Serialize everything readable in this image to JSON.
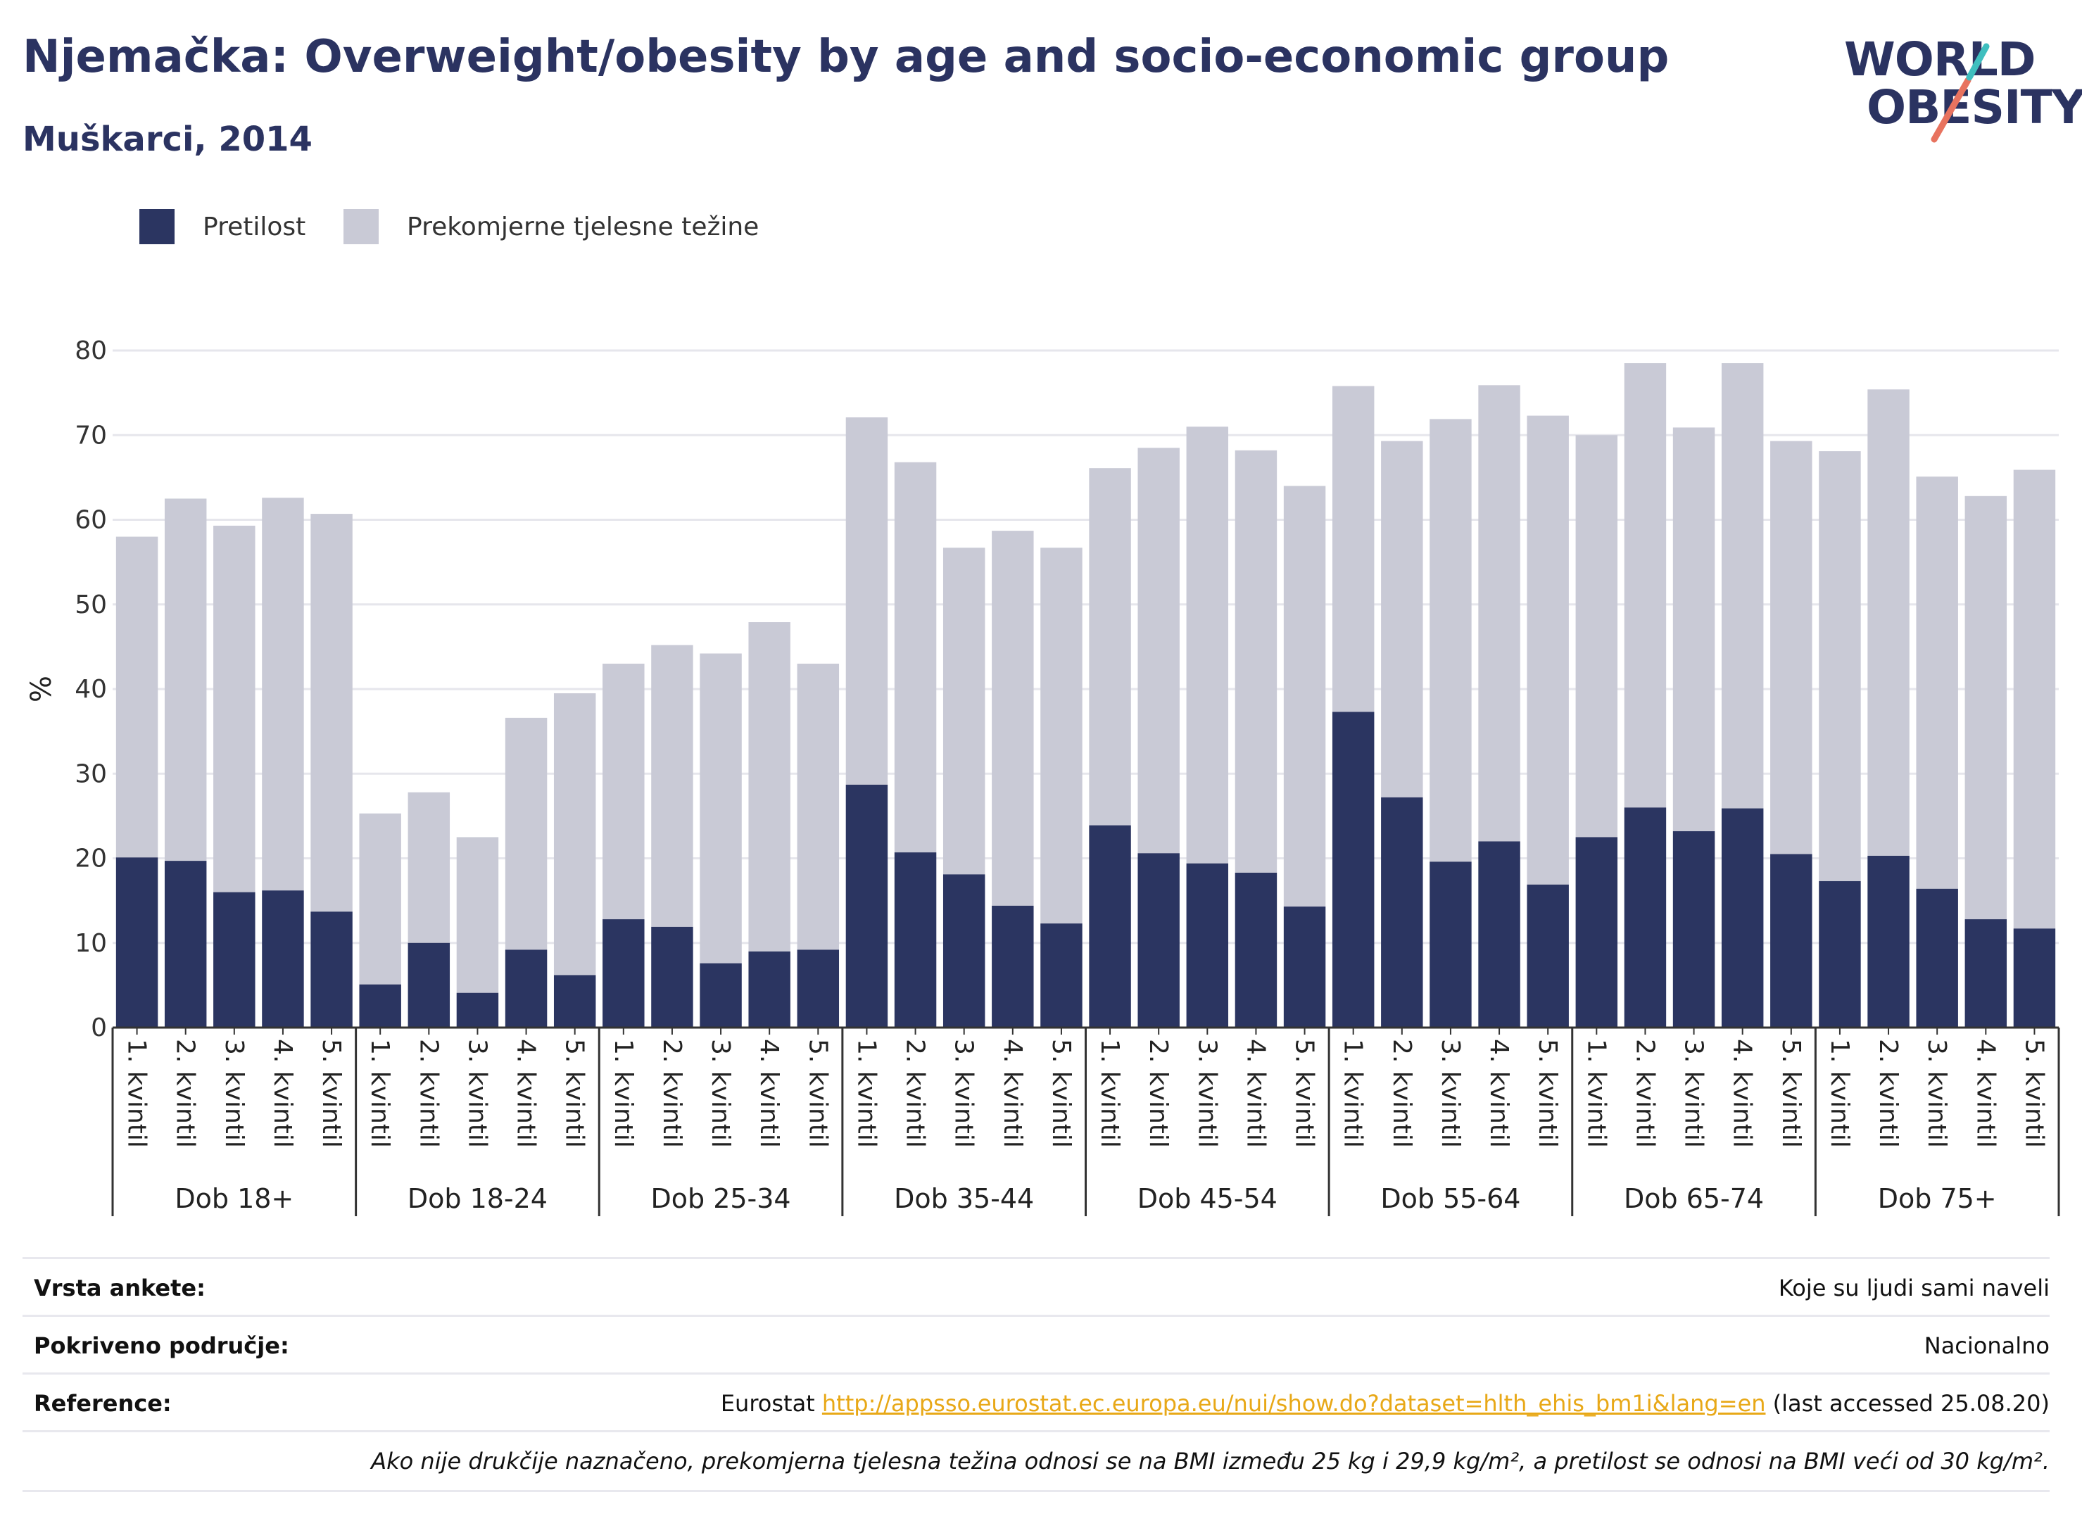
{
  "header": {
    "title": "Njemačka: Overweight/obesity by age and socio-economic group",
    "subtitle": "Muškarci, 2014"
  },
  "logo": {
    "line1": "WORLD",
    "line2": "OBESITY"
  },
  "colors": {
    "obesity": "#2b3561",
    "overweight": "#c9cad6",
    "grid": "#e6e6ec",
    "axis": "#333333",
    "logo_teal": "#3fbfbf",
    "logo_coral": "#e8735f"
  },
  "chart_data": {
    "type": "bar",
    "stacked": true,
    "ylabel": "%",
    "ylim": [
      0,
      80
    ],
    "yticks": [
      0,
      10,
      20,
      30,
      40,
      50,
      60,
      70,
      80
    ],
    "grid": true,
    "legend_position": "top-left",
    "groups": [
      "Dob 18+",
      "Dob 18-24",
      "Dob 25-34",
      "Dob 35-44",
      "Dob 45-54",
      "Dob 55-64",
      "Dob 65-74",
      "Dob 75+"
    ],
    "categories": [
      "1. kvintil",
      "2. kvintil",
      "3. kvintil",
      "4. kvintil",
      "5. kvintil"
    ],
    "series": [
      {
        "name": "Pretilost",
        "values": [
          [
            20.1,
            19.7,
            16.0,
            16.2,
            13.7
          ],
          [
            5.1,
            10.0,
            4.1,
            9.2,
            6.2
          ],
          [
            12.8,
            11.9,
            7.6,
            9.0,
            9.2
          ],
          [
            28.7,
            20.7,
            18.1,
            14.4,
            12.3
          ],
          [
            23.9,
            20.6,
            19.4,
            18.3,
            14.3
          ],
          [
            37.3,
            27.2,
            19.6,
            22.0,
            16.9
          ],
          [
            22.5,
            26.0,
            23.2,
            25.9,
            20.5
          ],
          [
            17.3,
            20.3,
            16.4,
            12.8,
            11.7
          ]
        ]
      },
      {
        "name": "Prekomjerne tjelesne težine",
        "values": [
          [
            37.9,
            42.8,
            43.3,
            46.4,
            47.0
          ],
          [
            20.2,
            17.8,
            18.4,
            27.4,
            33.3
          ],
          [
            30.2,
            33.3,
            36.6,
            38.9,
            33.8
          ],
          [
            43.4,
            46.1,
            38.6,
            44.3,
            44.4
          ],
          [
            42.2,
            47.9,
            51.6,
            49.9,
            49.7
          ],
          [
            38.5,
            42.1,
            52.3,
            53.9,
            55.4
          ],
          [
            47.5,
            52.5,
            47.7,
            52.6,
            48.8
          ],
          [
            50.8,
            55.1,
            48.7,
            50.0,
            54.2
          ]
        ]
      }
    ]
  },
  "info": {
    "survey_type_label": "Vrsta ankete:",
    "survey_type_value": "Koje su ljudi sami naveli",
    "coverage_label": "Pokriveno područje:",
    "coverage_value": "Nacionalno",
    "reference_label": "Reference:",
    "reference_prefix": "Eurostat",
    "reference_url": "http://appsso.eurostat.ec.europa.eu/nui/show.do?dataset=hlth_ehis_bm1i&lang=en",
    "reference_suffix": "(last accessed 25.08.20)",
    "note": "Ako nije drukčije naznačeno, prekomjerna tjelesna težina odnosi se na BMI između 25 kg i 29,9 kg/m², a pretilost se odnosi na BMI veći od 30 kg/m²."
  }
}
